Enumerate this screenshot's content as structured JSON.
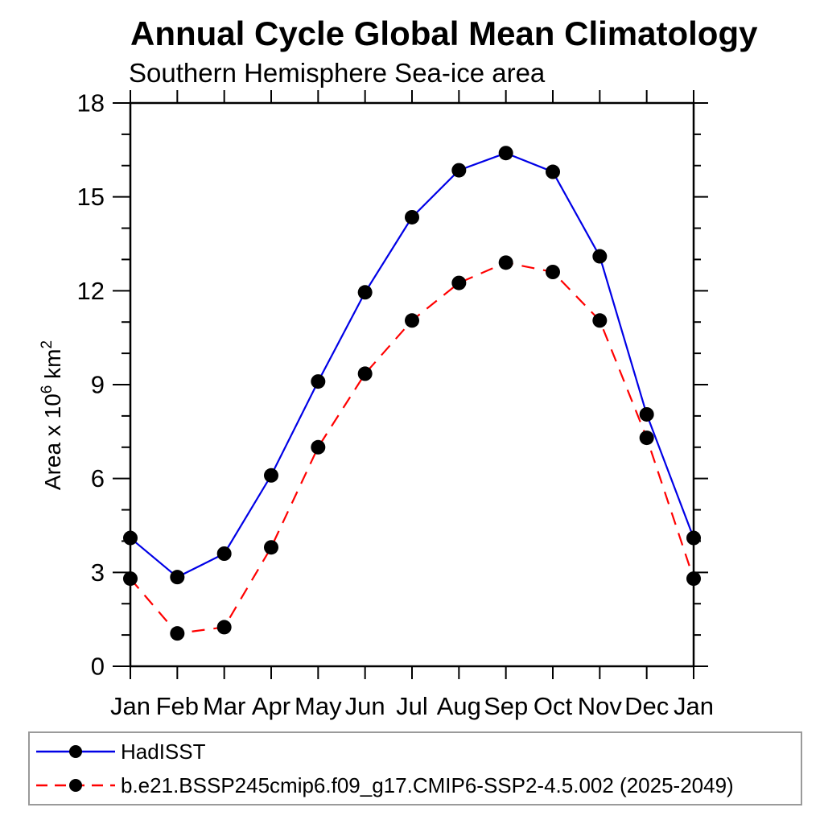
{
  "chart_data": {
    "type": "line",
    "title": "Annual Cycle Global Mean Climatology",
    "subtitle": "Southern Hemisphere Sea-ice area",
    "xlabel": "",
    "ylabel": "Area x 10⁶ km²",
    "ylabel_parts": {
      "base1": "Area x 10",
      "sup1": "6",
      "base2": " km",
      "sup2": "2"
    },
    "categories": [
      "Jan",
      "Feb",
      "Mar",
      "Apr",
      "May",
      "Jun",
      "Jul",
      "Aug",
      "Sep",
      "Oct",
      "Nov",
      "Dec",
      "Jan"
    ],
    "ylim": [
      0,
      18
    ],
    "ytick_major_step": 3,
    "ytick_minor_step": 1,
    "ytick_labels": [
      "0",
      "3",
      "6",
      "9",
      "12",
      "15",
      "18"
    ],
    "grid": false,
    "legend_position": "bottom-left-box",
    "axis_color": "#000000",
    "series": [
      {
        "name": "HadISST",
        "color": "#0000e6",
        "line_style": "solid",
        "marker": "circle",
        "marker_color": "#000000",
        "values": [
          4.1,
          2.85,
          3.6,
          6.1,
          9.1,
          11.95,
          14.35,
          15.85,
          16.4,
          15.8,
          13.1,
          8.05,
          4.1
        ]
      },
      {
        "name": "b.e21.BSSP245cmip6.f09_g17.CMIP6-SSP2-4.5.002 (2025-2049)",
        "color": "#ff0000",
        "line_style": "dashed",
        "marker": "circle",
        "marker_color": "#000000",
        "values": [
          2.8,
          1.05,
          1.25,
          3.8,
          7.0,
          9.35,
          11.05,
          12.25,
          12.9,
          12.6,
          11.05,
          7.3,
          2.8
        ]
      }
    ]
  }
}
